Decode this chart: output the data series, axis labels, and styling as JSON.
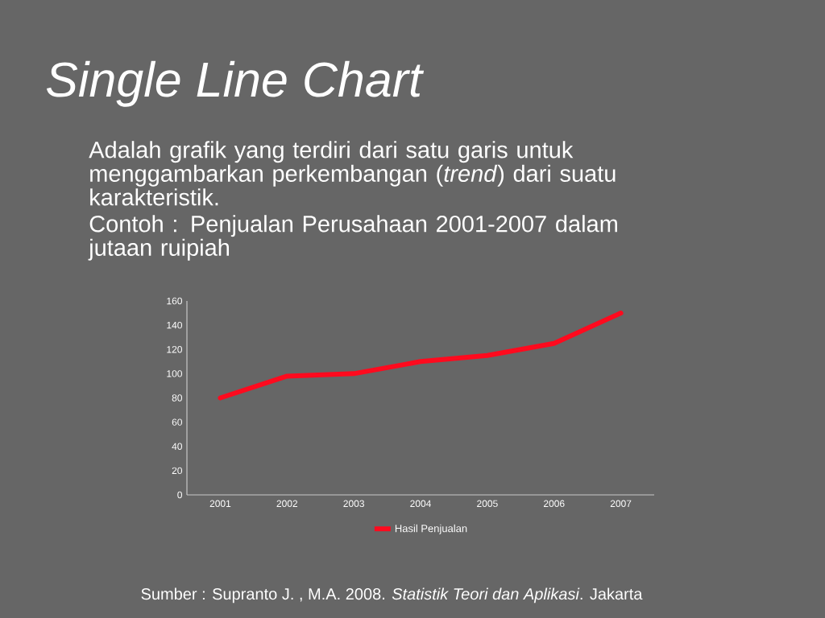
{
  "chart_data": {
    "type": "line",
    "title": "Single Line Chart",
    "annotations": [
      "Adalah grafik yang terdiri dari satu garis untuk menggambarkan perkembangan (*trend*) dari suatu karakteristik.",
      "Contoh : Penjualan Perusahaan 2001-2007 dalam jutaan ruipiah",
      "Sumber : Supranto J. , M.A. 2008. *Statistik Teori dan Aplikasi*. Jakarta"
    ],
    "categories": [
      "2001",
      "2002",
      "2003",
      "2004",
      "2005",
      "2006",
      "2007"
    ],
    "series": [
      {
        "name": "Hasil Penjualan",
        "color": "#ff0a1e",
        "values": [
          80,
          98,
          100,
          110,
          115,
          125,
          150
        ]
      }
    ],
    "ylim": [
      0,
      160
    ],
    "yticks": [
      0,
      20,
      40,
      60,
      80,
      100,
      120,
      140,
      160
    ],
    "legend": "bottom",
    "marker": "none",
    "line_style": "solid"
  }
}
